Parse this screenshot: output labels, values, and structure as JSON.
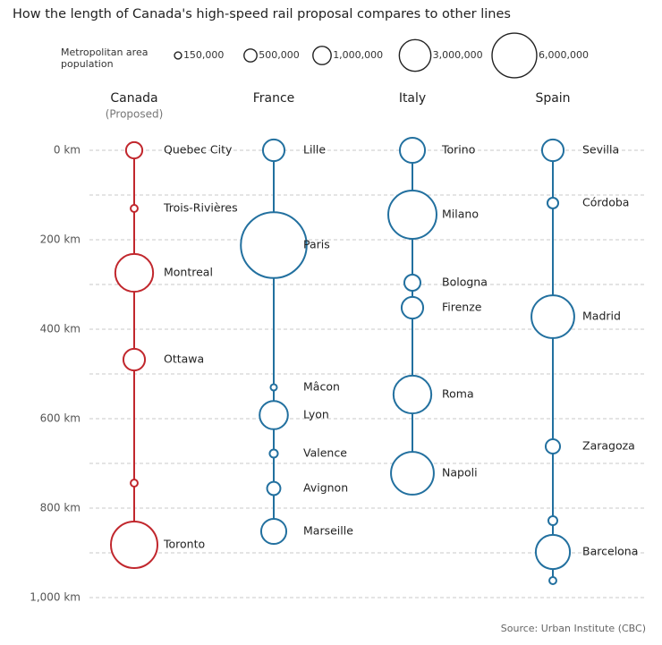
{
  "chart_data": {
    "type": "bubble",
    "title": "How the length of Canada's high-speed rail proposal compares to other lines",
    "source": "Source: Urban Institute (CBC)",
    "size_legend": {
      "title": "Metropolitan area population",
      "values": [
        {
          "value": 150000,
          "label": "150,000"
        },
        {
          "value": 500000,
          "label": "500,000"
        },
        {
          "value": 1000000,
          "label": "1,000,000"
        },
        {
          "value": 3000000,
          "label": "3,000,000"
        },
        {
          "value": 6000000,
          "label": "6,000,000"
        }
      ]
    },
    "ylim": [
      0,
      1000
    ],
    "yticks": [
      {
        "value": 0,
        "label": "0 km"
      },
      {
        "value": 200,
        "label": "200 km"
      },
      {
        "value": 400,
        "label": "400 km"
      },
      {
        "value": 600,
        "label": "600 km"
      },
      {
        "value": 800,
        "label": "800 km"
      },
      {
        "value": 1000,
        "label": "1,000 km"
      }
    ],
    "minor_yticks": [
      100,
      300,
      500,
      700,
      900
    ],
    "grid": true,
    "series": [
      {
        "name": "Canada",
        "note": "(Proposed)",
        "color": "#c1272d",
        "labels": [
          "Quebec City",
          "Trois-Rivières",
          "Montreal",
          "Ottawa",
          null,
          "Toronto"
        ],
        "values": [
          0,
          130,
          274,
          468,
          744,
          882
        ],
        "sizes": [
          800000,
          150000,
          4300000,
          1400000,
          150000,
          6500000
        ]
      },
      {
        "name": "France",
        "color": "#22709f",
        "labels": [
          "Lille",
          "Paris",
          "Mâcon",
          "Lyon",
          "Valence",
          "Avignon",
          "Marseille"
        ],
        "values": [
          0,
          212,
          530,
          592,
          678,
          756,
          852
        ],
        "sizes": [
          1400000,
          13000000,
          120000,
          2400000,
          200000,
          530000,
          1900000
        ]
      },
      {
        "name": "Italy",
        "color": "#22709f",
        "labels": [
          "Torino",
          "Milano",
          "Bologna",
          "Firenze",
          "Roma",
          "Napoli"
        ],
        "values": [
          0,
          144,
          296,
          352,
          546,
          722
        ],
        "sizes": [
          1900000,
          7000000,
          780000,
          1400000,
          4300000,
          5500000
        ]
      },
      {
        "name": "Spain",
        "color": "#22709f",
        "labels": [
          "Sevilla",
          "Córdoba",
          "Madrid",
          "Zaragoza",
          null,
          "Barcelona",
          null
        ],
        "values": [
          0,
          118,
          372,
          662,
          828,
          898,
          962
        ],
        "sizes": [
          1400000,
          350000,
          5500000,
          620000,
          240000,
          3500000,
          150000
        ]
      }
    ]
  }
}
